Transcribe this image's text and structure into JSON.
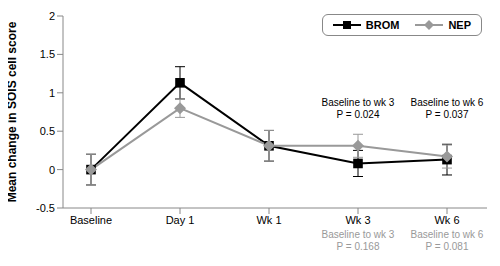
{
  "chart_data": {
    "type": "line",
    "y_label": "Mean change in SOIS cell score",
    "categories": [
      "Baseline",
      "Day 1",
      "Wk 1",
      "Wk 3",
      "Wk 6"
    ],
    "series": [
      {
        "name": "BROM",
        "color": "#000000",
        "marker": "square",
        "line_style": "solid",
        "values": [
          0,
          1.13,
          0.31,
          0.08,
          0.13
        ],
        "errors": [
          0.2,
          0.21,
          0.2,
          0.17,
          0.2
        ]
      },
      {
        "name": "NEP",
        "color": "#999999",
        "marker": "diamond",
        "line_style": "solid",
        "values": [
          0,
          0.8,
          0.31,
          0.31,
          0.17
        ],
        "errors": [
          0.2,
          0.12,
          0.2,
          0.15,
          0.15
        ]
      }
    ],
    "ylim": [
      -0.5,
      2
    ],
    "yticks": [
      -0.5,
      0,
      0.5,
      1,
      1.5,
      2
    ],
    "grid": false,
    "legend": "top right",
    "annotations": [
      {
        "series": "BROM",
        "category": "Wk 3",
        "text": [
          "Baseline to wk 3",
          "P = 0.024"
        ]
      },
      {
        "series": "BROM",
        "category": "Wk 6",
        "text": [
          "Baseline to wk 6",
          "P = 0.037"
        ]
      },
      {
        "series": "NEP",
        "category": "Wk 3",
        "text": [
          "Baseline to wk 3",
          "P = 0.168"
        ]
      },
      {
        "series": "NEP",
        "category": "Wk 6",
        "text": [
          "Baseline to wk 6",
          "P = 0.081"
        ]
      }
    ]
  }
}
